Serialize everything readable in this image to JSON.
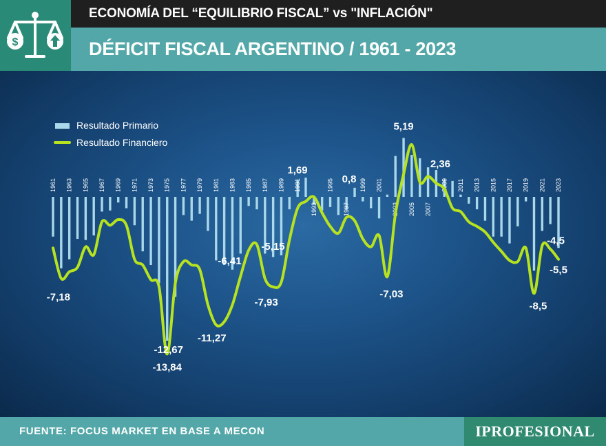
{
  "header": {
    "title": "ECONOMÍA DEL “EQUILIBRIO FISCAL” vs \"INFLACIÓN\"",
    "subtitle": "DÉFICIT FISCAL ARGENTINO / 1961 - 2023"
  },
  "footer": {
    "source": "FUENTE: FOCUS MARKET EN BASE A MECON",
    "brand": "IPROFESIONAL"
  },
  "colors": {
    "bars": "#a9d8ea",
    "line": "#b7e21f",
    "labels": "#ffffff"
  },
  "chart_data": {
    "type": "bar",
    "title": "DÉFICIT FISCAL ARGENTINO / 1961 - 2023",
    "legend": [
      "Resultado Primario",
      "Resultado Financiero"
    ],
    "legend_position": "top-left",
    "grid": false,
    "ylim": [
      -15,
      6
    ],
    "tick_labels": [
      "1961",
      "1963",
      "1965",
      "1967",
      "1969",
      "1971",
      "1973",
      "1975",
      "1977",
      "1979",
      "1981",
      "1983",
      "1985",
      "1987",
      "1989",
      "1991",
      "1993",
      "1995",
      "1997",
      "1999",
      "2001",
      "2003",
      "2005",
      "2007",
      "2009",
      "2011",
      "2013",
      "2015",
      "2017",
      "2019",
      "2021",
      "2023"
    ],
    "years": [
      1961,
      1962,
      1963,
      1964,
      1965,
      1966,
      1967,
      1968,
      1969,
      1970,
      1971,
      1972,
      1973,
      1974,
      1975,
      1976,
      1977,
      1978,
      1979,
      1980,
      1981,
      1982,
      1983,
      1984,
      1985,
      1986,
      1987,
      1988,
      1989,
      1990,
      1991,
      1992,
      1993,
      1994,
      1995,
      1996,
      1997,
      1998,
      1999,
      2000,
      2001,
      2002,
      2003,
      2004,
      2005,
      2006,
      2007,
      2008,
      2009,
      2010,
      2011,
      2012,
      2013,
      2014,
      2015,
      2016,
      2017,
      2018,
      2019,
      2020,
      2021,
      2022,
      2023
    ],
    "series": [
      {
        "name": "Resultado Primario",
        "type": "bar",
        "values": [
          -3.5,
          -6.3,
          -5.5,
          -3.7,
          -3.8,
          -3.4,
          -1.3,
          -1.2,
          -0.5,
          -1.0,
          -2.5,
          -4.8,
          -6.0,
          -7.6,
          -12.67,
          -8.8,
          -1.6,
          -2.1,
          -1.5,
          -3.0,
          -5.6,
          -6.0,
          -6.41,
          -5.0,
          -0.8,
          -1.1,
          -5.0,
          -5.3,
          -5.15,
          -1.1,
          1.5,
          1.69,
          -0.7,
          -1.2,
          -0.9,
          -1.6,
          -1.1,
          0.8,
          -0.4,
          -1.0,
          -1.9,
          0.2,
          3.6,
          5.19,
          3.7,
          3.4,
          2.6,
          2.36,
          1.5,
          1.4,
          0.2,
          -0.6,
          -1.1,
          -2.1,
          -3.5,
          -3.5,
          -4.1,
          -2.6,
          -0.4,
          -6.5,
          -3.0,
          -2.4,
          -4.5
        ]
      },
      {
        "name": "Resultado Financiero",
        "type": "line",
        "values": [
          -4.5,
          -7.18,
          -6.6,
          -6.2,
          -4.4,
          -5.1,
          -2.2,
          -2.5,
          -2.0,
          -2.5,
          -5.5,
          -6.0,
          -7.3,
          -7.9,
          -13.84,
          -7.6,
          -5.7,
          -6.0,
          -6.4,
          -9.5,
          -11.27,
          -11.0,
          -9.5,
          -7.0,
          -4.7,
          -4.2,
          -7.2,
          -7.93,
          -7.5,
          -3.8,
          -1.0,
          -0.4,
          0.0,
          -1.4,
          -2.6,
          -3.2,
          -1.8,
          -2.1,
          -3.7,
          -4.4,
          -3.4,
          -7.03,
          -1.5,
          2.0,
          4.6,
          1.3,
          1.8,
          1.2,
          0.7,
          -1.0,
          -1.3,
          -2.2,
          -2.6,
          -3.1,
          -4.0,
          -4.8,
          -5.6,
          -5.7,
          -4.5,
          -8.5,
          -4.3,
          -4.6,
          -5.5
        ]
      }
    ],
    "data_labels": [
      {
        "year": 1962,
        "series": "Resultado Financiero",
        "text": "-7,18"
      },
      {
        "year": 1975,
        "series": "Resultado Primario",
        "text": "-12,67"
      },
      {
        "year": 1975,
        "series": "Resultado Financiero",
        "text": "-13,84"
      },
      {
        "year": 1981,
        "series": "Resultado Financiero",
        "text": "-11,27"
      },
      {
        "year": 1983,
        "series": "Resultado Primario",
        "text": "-6,41"
      },
      {
        "year": 1988,
        "series": "Resultado Financiero",
        "text": "-7,93"
      },
      {
        "year": 1989,
        "series": "Resultado Primario",
        "text": "-5,15"
      },
      {
        "year": 1992,
        "series": "Resultado Primario",
        "text": "1,69"
      },
      {
        "year": 1998,
        "series": "Resultado Primario",
        "text": "0,8"
      },
      {
        "year": 2002,
        "series": "Resultado Financiero",
        "text": "-7,03"
      },
      {
        "year": 2004,
        "series": "Resultado Primario",
        "text": "5,19"
      },
      {
        "year": 2008,
        "series": "Resultado Primario",
        "text": "2,36"
      },
      {
        "year": 2020,
        "series": "Resultado Financiero",
        "text": "-8,5"
      },
      {
        "year": 2023,
        "series": "Resultado Primario",
        "text": "-4,5"
      },
      {
        "year": 2023,
        "series": "Resultado Financiero",
        "text": "-5,5"
      }
    ]
  }
}
